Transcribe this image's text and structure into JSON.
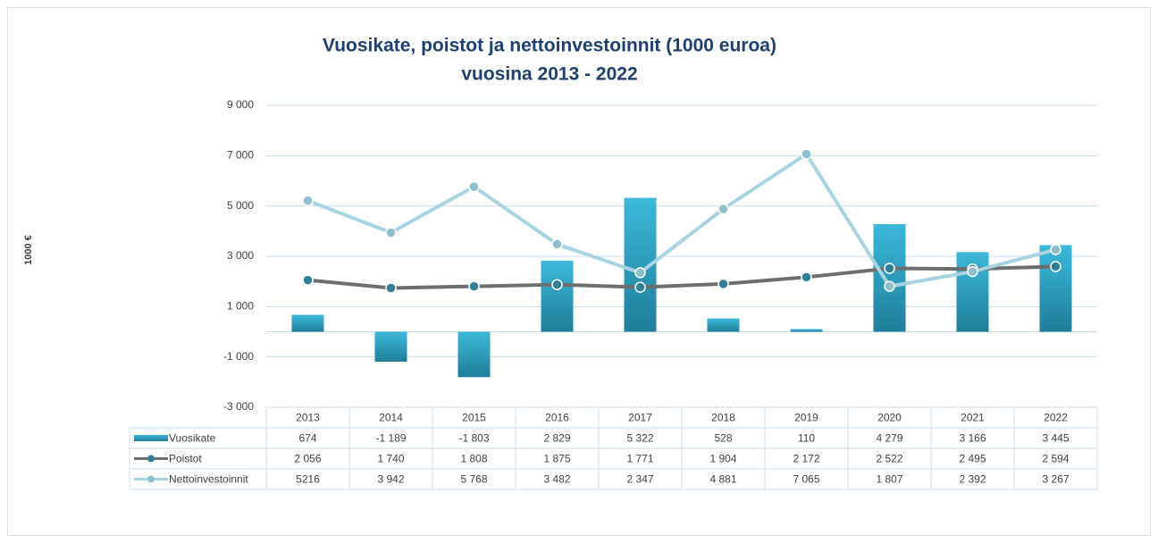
{
  "chart_data": {
    "type": "bar-line",
    "title": "Vuosikate, poistot ja nettoinvestoinnit  (1000 euroa)",
    "subtitle": "vuosina 2013 - 2022",
    "y_label": "1000 €",
    "categories": [
      "2013",
      "2014",
      "2015",
      "2016",
      "2017",
      "2018",
      "2019",
      "2020",
      "2021",
      "2022"
    ],
    "series": [
      {
        "name": "Vuosikate",
        "type": "bar",
        "color": "#2a9bbd",
        "values": [
          674,
          -1189,
          -1803,
          2829,
          5322,
          528,
          110,
          4279,
          3166,
          3445
        ],
        "value_labels": [
          "674",
          "-1 189",
          "-1 803",
          "2 829",
          "5 322",
          "528",
          "110",
          "4 279",
          "3 166",
          "3 445"
        ]
      },
      {
        "name": "Poistot",
        "type": "line",
        "color": "#6e6e6e",
        "marker_color": "#2f7f99",
        "values": [
          2056,
          1740,
          1808,
          1875,
          1771,
          1904,
          2172,
          2522,
          2495,
          2594
        ],
        "value_labels": [
          "2 056",
          "1 740",
          "1 808",
          "1 875",
          "1 771",
          "1 904",
          "2 172",
          "2 522",
          "2 495",
          "2 594"
        ]
      },
      {
        "name": "Nettoinvestoinnit",
        "type": "line",
        "color": "#a8d4e2",
        "marker_color": "#8fbfcf",
        "values": [
          5216,
          3942,
          5768,
          3482,
          2347,
          4881,
          7065,
          1807,
          2392,
          3267
        ],
        "value_labels": [
          "5216",
          "3 942",
          "5 768",
          "3 482",
          "2 347",
          "4 881",
          "7 065",
          "1 807",
          "2 392",
          "3 267"
        ]
      }
    ],
    "ylim": [
      -3000,
      9000
    ],
    "yticks": [
      {
        "value": -3000,
        "label": "-3 000"
      },
      {
        "value": -1000,
        "label": "-1 000"
      },
      {
        "value": 1000,
        "label": "1 000"
      },
      {
        "value": 3000,
        "label": "3 000"
      },
      {
        "value": 5000,
        "label": "5 000"
      },
      {
        "value": 7000,
        "label": "7 000"
      },
      {
        "value": 9000,
        "label": "9 000"
      }
    ],
    "grid": true
  }
}
